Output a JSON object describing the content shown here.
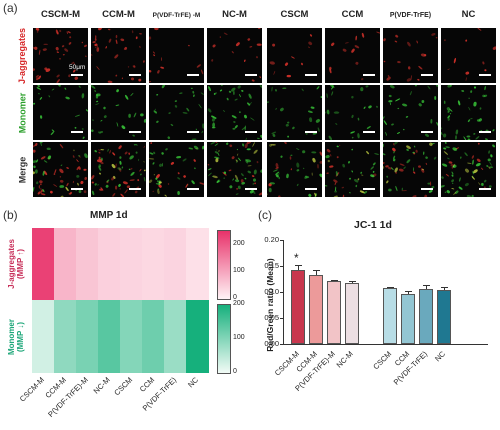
{
  "panel_a": {
    "letter": "(a)",
    "columns": [
      "CSCM-M",
      "CCM-M",
      "P(VDF-TrFE) -M",
      "NC-M",
      "CSCM",
      "CCM",
      "P(VDF-TrFE)",
      "NC"
    ],
    "rows": [
      {
        "label": "J-aggregates",
        "color": "#d62728"
      },
      {
        "label": "Monomer",
        "color": "#2ca02c"
      },
      {
        "label": "Merge",
        "color": "#333333"
      }
    ],
    "scale_bar": "50μm"
  },
  "panel_b": {
    "letter": "(b)",
    "title": "MMP 1d",
    "row_labels": [
      {
        "line1": "J-aggregates",
        "line2": "(MMP ↑)",
        "color": "#c8305a"
      },
      {
        "line1": "Monomer",
        "line2": "(MMP ↓)",
        "color": "#1fa77a"
      }
    ],
    "x_labels": [
      "CSCM-M",
      "CCM-M",
      "P(VDF-TrFE)-M",
      "NC-M",
      "CSCM",
      "CCM",
      "P(VDF-TrFE)",
      "NC"
    ],
    "colorbar_red": {
      "ticks": [
        "200",
        "100",
        "0"
      ],
      "max": 250,
      "low_color": "#fff3f6",
      "high_color": "#e8326a"
    },
    "colorbar_green": {
      "ticks": [
        "200",
        "100",
        "0"
      ],
      "max": 200,
      "low_color": "#f2fbf6",
      "high_color": "#16b07c"
    },
    "chart_data": {
      "type": "heatmap",
      "title": "MMP 1d",
      "columns": [
        "CSCM-M",
        "CCM-M",
        "P(VDF-TrFE)-M",
        "NC-M",
        "CSCM",
        "CCM",
        "P(VDF-TrFE)",
        "NC"
      ],
      "rows": [
        "J-aggregates (MMP ↑)",
        "Monomer (MMP ↓)"
      ],
      "values": [
        [
          230,
          80,
          60,
          45,
          40,
          35,
          40,
          25
        ],
        [
          30,
          90,
          110,
          140,
          100,
          120,
          80,
          200
        ]
      ]
    }
  },
  "panel_c": {
    "letter": "(c)",
    "title": "JC-1 1d",
    "ylabel": "Red/Green ratio (Mean)",
    "star": "*",
    "chart_data": {
      "type": "bar",
      "title": "JC-1 1d",
      "ylabel": "Red/Green ratio (Mean)",
      "categories": [
        "CSCM-M",
        "CCM-M",
        "P(VDF-TrFE)-M",
        "NC-M",
        "CSCM",
        "CCM",
        "P(VDF-TrFE)",
        "NC"
      ],
      "values": [
        0.142,
        0.132,
        0.122,
        0.117,
        0.107,
        0.096,
        0.106,
        0.103
      ],
      "errors": [
        0.01,
        0.01,
        0.002,
        0.004,
        0.003,
        0.005,
        0.008,
        0.006
      ],
      "colors": [
        "#c8374e",
        "#ec9a9a",
        "#f2c4c7",
        "#ecdfe3",
        "#b8dde6",
        "#93c6d3",
        "#6aa9bd",
        "#1f7891"
      ],
      "ylim": [
        0,
        0.2
      ],
      "yticks": [
        "0.00",
        "0.05",
        "0.10",
        "0.15",
        "0.20"
      ],
      "significant": [
        "CSCM-M"
      ]
    }
  }
}
